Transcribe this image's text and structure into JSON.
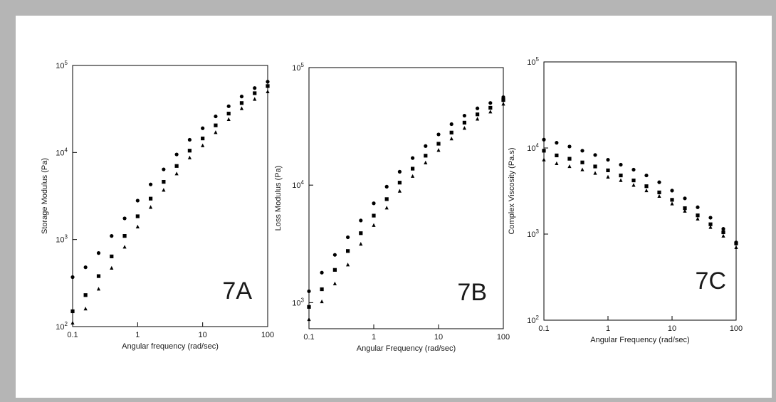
{
  "chart_data": [
    {
      "type": "scatter",
      "panel_label": "7A",
      "xlabel": "Angular frequency (rad/sec)",
      "ylabel": "Storage Modulus (Pa)",
      "xscale": "log",
      "yscale": "log",
      "xlim": [
        0.1,
        100
      ],
      "ylim": [
        100,
        100000
      ],
      "x_ticks": [
        "0.1",
        "1",
        "10",
        "100"
      ],
      "y_tick_exponents": [
        "2",
        "3",
        "4",
        "5"
      ],
      "grid": false,
      "x": [
        0.1,
        0.158,
        0.251,
        0.398,
        0.631,
        1.0,
        1.585,
        2.512,
        3.981,
        6.31,
        10.0,
        15.85,
        25.12,
        39.81,
        63.1,
        100.0
      ],
      "series": [
        {
          "marker": "circle",
          "values": [
            370,
            480,
            700,
            1100,
            1750,
            2800,
            4300,
            6400,
            9500,
            14000,
            19000,
            26000,
            34000,
            44000,
            55000,
            65000
          ]
        },
        {
          "marker": "square",
          "values": [
            150,
            230,
            380,
            640,
            1100,
            1850,
            2950,
            4600,
            7000,
            10500,
            14500,
            20500,
            28000,
            37000,
            48000,
            58000
          ]
        },
        {
          "marker": "triangle",
          "values": [
            110,
            160,
            270,
            470,
            820,
            1400,
            2350,
            3700,
            5700,
            8700,
            12000,
            17000,
            24000,
            32000,
            41000,
            50000
          ]
        }
      ]
    },
    {
      "type": "scatter",
      "panel_label": "7B",
      "xlabel": "Angular Frequency (rad/sec)",
      "ylabel": "Loss Modulus (Pa)",
      "xscale": "log",
      "yscale": "log",
      "xlim": [
        0.1,
        100
      ],
      "ylim": [
        600,
        100000
      ],
      "x_ticks": [
        "0.1",
        "1",
        "10",
        "100"
      ],
      "y_tick_exponents": [
        "3",
        "4",
        "5"
      ],
      "grid": false,
      "x": [
        0.1,
        0.158,
        0.251,
        0.398,
        0.631,
        1.0,
        1.585,
        2.512,
        3.981,
        6.31,
        10.0,
        15.85,
        25.12,
        39.81,
        63.1,
        100.0
      ],
      "series": [
        {
          "marker": "circle",
          "values": [
            1250,
            1800,
            2550,
            3600,
            5000,
            7000,
            9700,
            13000,
            17000,
            21500,
            27000,
            33000,
            39000,
            45000,
            50000,
            56000
          ]
        },
        {
          "marker": "square",
          "values": [
            920,
            1300,
            1900,
            2750,
            3900,
            5500,
            7600,
            10500,
            13800,
            17800,
            22500,
            28000,
            34000,
            40000,
            45500,
            53000
          ]
        },
        {
          "marker": "triangle",
          "values": [
            720,
            1020,
            1450,
            2100,
            3150,
            4550,
            6400,
            8900,
            11900,
            15500,
            19800,
            24800,
            30500,
            36500,
            42000,
            49000
          ]
        }
      ]
    },
    {
      "type": "scatter",
      "panel_label": "7C",
      "xlabel": "Angular Frequency (rad/sec)",
      "ylabel": "Complex Viscosity (Pa.s)",
      "xscale": "log",
      "yscale": "log",
      "xlim": [
        0.1,
        100
      ],
      "ylim": [
        100,
        100000
      ],
      "x_ticks": [
        "0.1",
        "1",
        "10",
        "100"
      ],
      "y_tick_exponents": [
        "2",
        "3",
        "4",
        "5"
      ],
      "grid": false,
      "x": [
        0.1,
        0.158,
        0.251,
        0.398,
        0.631,
        1.0,
        1.585,
        2.512,
        3.981,
        6.31,
        10.0,
        15.85,
        25.12,
        39.81,
        63.1,
        100.0
      ],
      "series": [
        {
          "marker": "circle",
          "values": [
            12500,
            11500,
            10400,
            9300,
            8300,
            7300,
            6400,
            5600,
            4800,
            4000,
            3200,
            2600,
            2050,
            1550,
            1150,
            800
          ]
        },
        {
          "marker": "square",
          "values": [
            9300,
            8200,
            7500,
            6800,
            6100,
            5500,
            4800,
            4200,
            3600,
            3050,
            2500,
            2000,
            1650,
            1300,
            1050,
            780
          ]
        },
        {
          "marker": "triangle",
          "values": [
            7300,
            6600,
            6100,
            5600,
            5100,
            4600,
            4200,
            3700,
            3200,
            2750,
            2250,
            1850,
            1500,
            1200,
            950,
            700
          ]
        }
      ]
    }
  ]
}
